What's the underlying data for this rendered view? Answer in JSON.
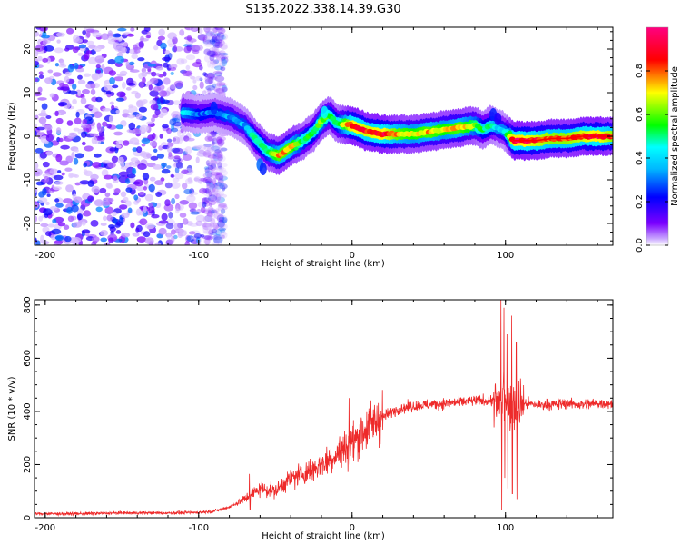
{
  "title": "S135.2022.338.14.39.G30",
  "chart_data": [
    {
      "type": "heatmap",
      "xlabel": "Height of straight line (km)",
      "ylabel": "Frequency (Hz)",
      "xlim": [
        -207,
        170
      ],
      "ylim": [
        -25,
        25
      ],
      "xticks": [
        -200,
        -100,
        0,
        100
      ],
      "yticks": [
        -20,
        -10,
        0,
        10,
        20
      ],
      "colorbar": {
        "label": "Normalized spectral amplitude",
        "range": [
          0,
          1
        ],
        "ticks": [
          0.0,
          0.2,
          0.4,
          0.6,
          0.8
        ],
        "tick_labels": [
          "0.0",
          "0.2",
          "0.4",
          "0.6",
          "0.8"
        ],
        "colormap": [
          "#ffffff",
          "#7b00ff",
          "#0000ff",
          "#00ffff",
          "#00ff00",
          "#ffff00",
          "#ff0000",
          "#ff0080"
        ]
      },
      "noise_region_x": [
        -207,
        -85
      ],
      "ridge": {
        "x": [
          -110,
          -100,
          -90,
          -80,
          -70,
          -62,
          -55,
          -48,
          -40,
          -32,
          -25,
          -20,
          -15,
          -10,
          0,
          10,
          20,
          30,
          40,
          50,
          60,
          70,
          80,
          85,
          90,
          95,
          100,
          105,
          110,
          120,
          130,
          140,
          150,
          160,
          170
        ],
        "y": [
          5.5,
          5.0,
          5.5,
          4.5,
          2.5,
          -1.0,
          -3.5,
          -4.5,
          -2.5,
          -1.0,
          1.0,
          3.5,
          5.0,
          3.0,
          2.5,
          1.0,
          0.5,
          0.5,
          0.5,
          1.0,
          1.5,
          2.0,
          2.5,
          1.5,
          2.5,
          2.0,
          1.0,
          -1.0,
          -1.0,
          -1.0,
          -0.5,
          -0.5,
          0.0,
          0.0,
          0.0
        ],
        "peak_amplitude": [
          0.45,
          0.35,
          0.35,
          0.4,
          0.4,
          0.55,
          0.6,
          0.8,
          0.8,
          0.6,
          0.55,
          0.7,
          0.6,
          0.55,
          0.95,
          0.9,
          0.95,
          0.8,
          0.75,
          0.8,
          0.75,
          0.8,
          0.7,
          0.55,
          0.55,
          0.45,
          0.45,
          0.95,
          0.95,
          0.9,
          0.85,
          0.85,
          0.9,
          0.95,
          0.85
        ]
      }
    },
    {
      "type": "line",
      "xlabel": "Height of straight line (km)",
      "ylabel": "SNR (10 * v/v)",
      "xlim": [
        -207,
        170
      ],
      "ylim": [
        0,
        820
      ],
      "xticks": [
        -200,
        -100,
        0,
        100
      ],
      "yticks": [
        0,
        200,
        400,
        600,
        800
      ],
      "color": "#ee2a2a",
      "series": [
        {
          "x": [
            -207,
            -180,
            -150,
            -120,
            -100,
            -90,
            -80,
            -70,
            -60,
            -50,
            -40,
            -30,
            -20,
            -10,
            0,
            10,
            20,
            30,
            40,
            50,
            60,
            70,
            80,
            90,
            95,
            100,
            105,
            110,
            120,
            130,
            140,
            150,
            160,
            170
          ],
          "values": [
            15,
            15,
            18,
            18,
            20,
            25,
            40,
            70,
            110,
            100,
            150,
            170,
            200,
            240,
            280,
            340,
            380,
            410,
            420,
            425,
            430,
            435,
            440,
            440,
            430,
            440,
            430,
            430,
            425,
            425,
            430,
            425,
            430,
            430
          ]
        }
      ],
      "spikes": [
        {
          "x": 97,
          "high": 820,
          "low": 30
        },
        {
          "x": 99,
          "high": 790,
          "low": 150
        },
        {
          "x": 101,
          "high": 690,
          "low": 110
        },
        {
          "x": 104,
          "high": 760,
          "low": 90
        },
        {
          "x": 107,
          "high": 660,
          "low": 70
        },
        {
          "x": -67,
          "high": 165,
          "low": 30
        },
        {
          "x": -2,
          "high": 450,
          "low": 200
        }
      ]
    }
  ]
}
